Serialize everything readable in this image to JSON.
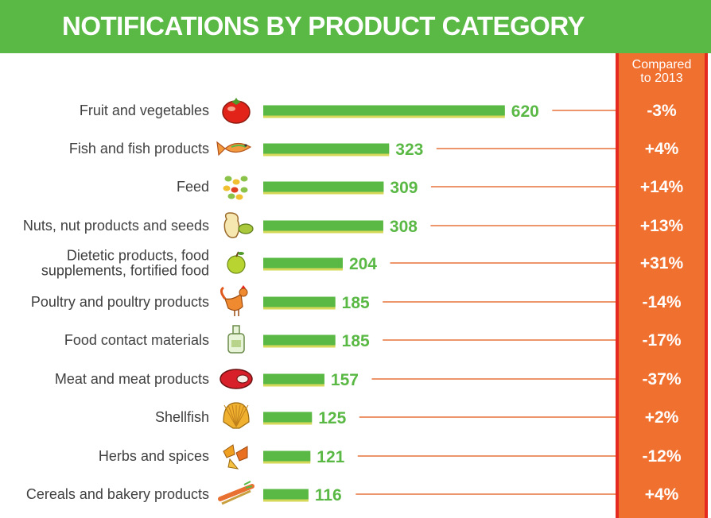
{
  "title": "NOTIFICATIONS BY PRODUCT CATEGORY",
  "compare_header": {
    "line1": "Compared",
    "line2": "to 2013"
  },
  "colors": {
    "title_bar": "#5ab845",
    "bar": "#5ab845",
    "bar_shadow": "#d6d85a",
    "value_text": "#5ab845",
    "leader_line": "#e8743a",
    "compare_column": "#f07030",
    "compare_border": "#e52b20"
  },
  "chart_data": {
    "type": "bar",
    "orientation": "horizontal",
    "title": "NOTIFICATIONS BY PRODUCT CATEGORY",
    "categories": [
      "Fruit and vegetables",
      "Fish and fish products",
      "Feed",
      "Nuts, nut products and seeds",
      [
        "Dietetic products, food",
        "supplements, fortified food"
      ],
      "Poultry and poultry products",
      "Food contact materials",
      "Meat and meat products",
      "Shellfish",
      "Herbs and spices",
      "Cereals and bakery products"
    ],
    "values": [
      620,
      323,
      309,
      308,
      204,
      185,
      185,
      157,
      125,
      121,
      116
    ],
    "compared_to_2013": [
      "-3%",
      "+4%",
      "+14%",
      "+13%",
      "+31%",
      "-14%",
      "-17%",
      "-37%",
      "+2%",
      "-12%",
      "+4%"
    ],
    "icons": [
      "tomato-icon",
      "fish-icon",
      "feed-pellets-icon",
      "peanut-icon",
      "apple-icon",
      "rooster-icon",
      "bottle-icon",
      "steak-icon",
      "shell-icon",
      "leaves-icon",
      "cereal-icon"
    ]
  }
}
